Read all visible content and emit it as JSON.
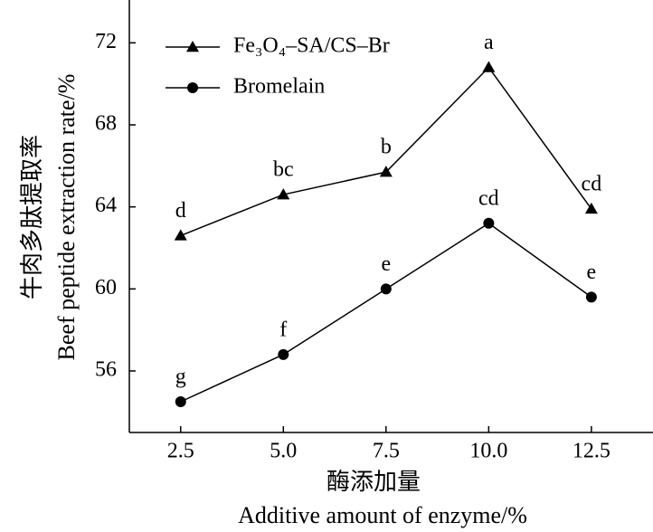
{
  "chart_data": {
    "type": "line",
    "x_label": [
      "酶添加量",
      "Additive amount of enzyme/%"
    ],
    "y_label": [
      "牛肉多肽提取率",
      "Beef peptide extraction rate/%"
    ],
    "x": [
      2.5,
      5,
      7.5,
      10,
      12.5
    ],
    "xlim": [
      1.25,
      14
    ],
    "ylim": [
      53,
      74
    ],
    "xticks": [
      {
        "value": 2.5,
        "label": "2.5"
      },
      {
        "value": 5,
        "label": "5.0"
      },
      {
        "value": 7.5,
        "label": "7.5"
      },
      {
        "value": 10,
        "label": "10.0"
      },
      {
        "value": 12.5,
        "label": "12.5"
      }
    ],
    "yticks": [
      56,
      60,
      64,
      68,
      72
    ],
    "legend": "upper left",
    "series": [
      {
        "name": "Fe₃O₄–SA/CS–Br",
        "color": "#000000",
        "marker": "triangle",
        "values": [
          62.6,
          64.6,
          65.7,
          70.8,
          63.9
        ],
        "significance": [
          "d",
          "bc",
          "b",
          "a",
          "cd"
        ]
      },
      {
        "name": "Bromelain",
        "color": "#000000",
        "marker": "circle",
        "values": [
          54.5,
          56.8,
          60.0,
          63.2,
          59.6
        ],
        "significance": [
          "g",
          "f",
          "e",
          "cd",
          "e"
        ]
      }
    ]
  }
}
